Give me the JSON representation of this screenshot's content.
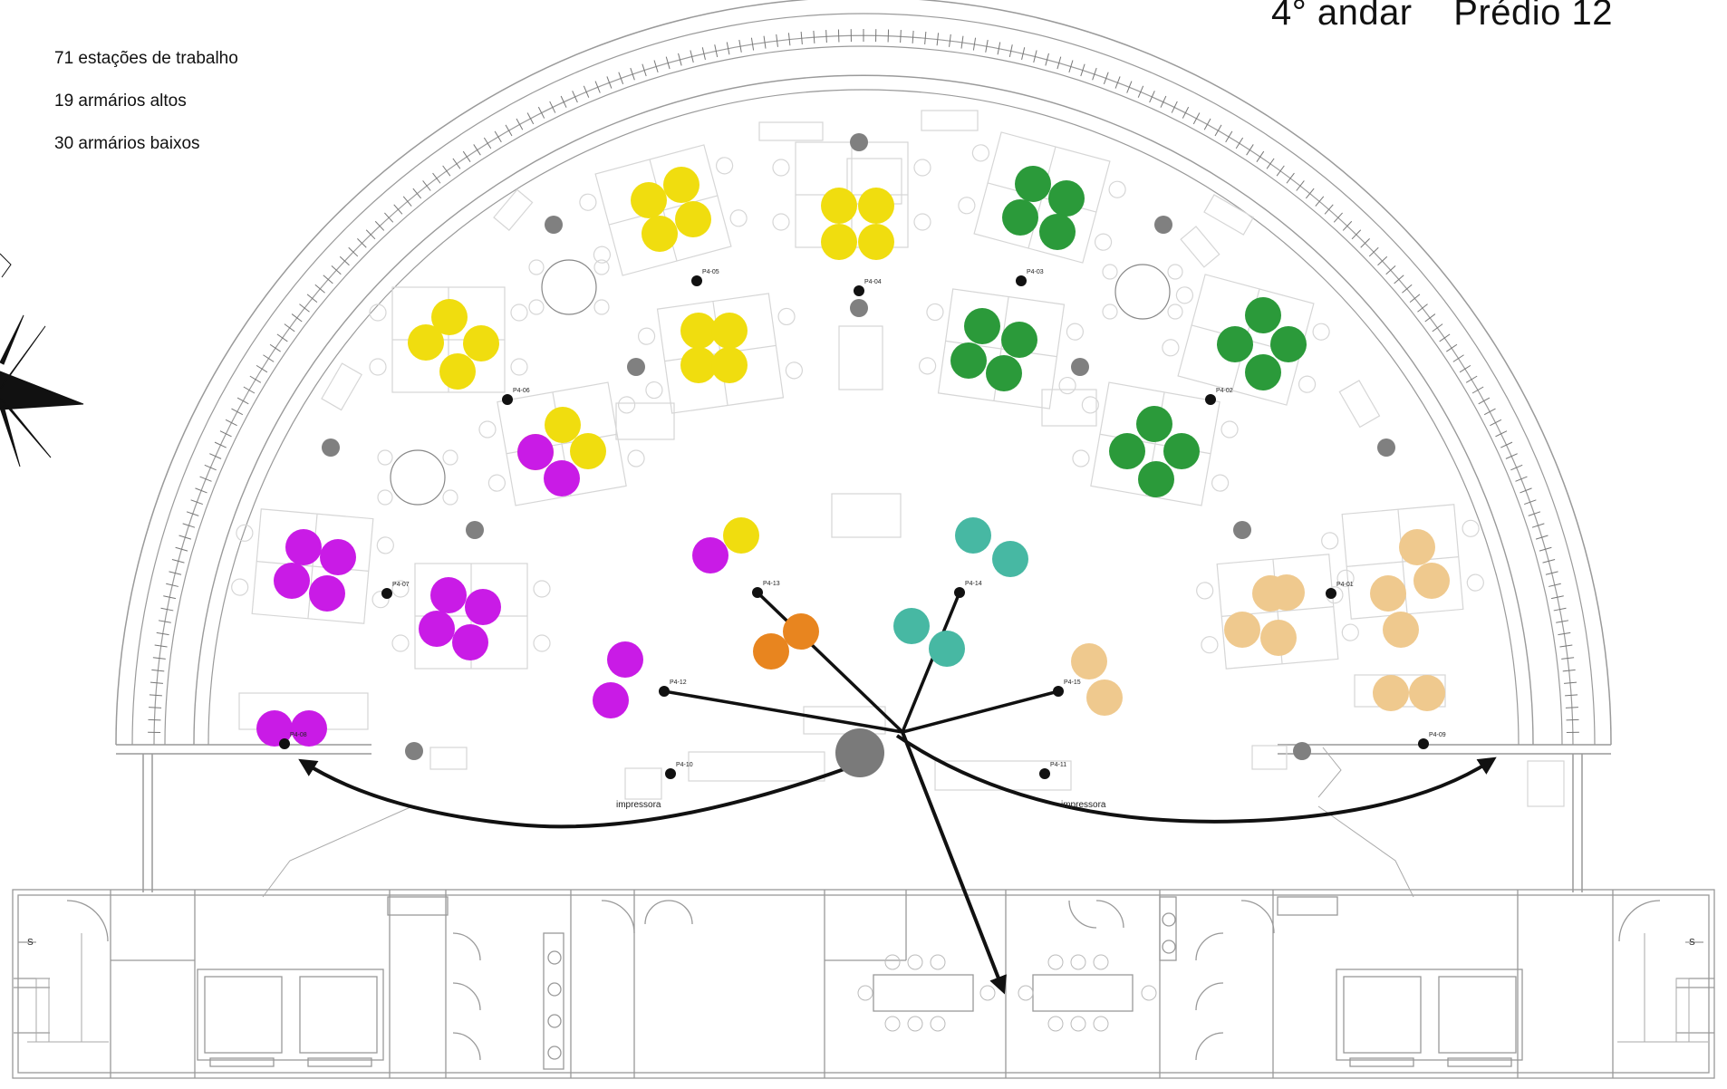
{
  "header": {
    "floor": "4° andar",
    "building": "Prédio 12"
  },
  "legend": {
    "items": [
      {
        "label": "71 estações de trabalho"
      },
      {
        "label": "19 armários altos"
      },
      {
        "label": "30 armários baixos"
      }
    ]
  },
  "team_colors": {
    "yellow": "#f0dd0f",
    "green": "#2b9a3a",
    "magenta": "#c91be6",
    "orange": "#e8851f",
    "teal": "#47b8a3",
    "peach": "#efc98e",
    "hub": "#7a7a7a",
    "column": "#808080"
  },
  "points": {
    "labels": [
      "P4-01",
      "P4-02",
      "P4-03",
      "P4-04",
      "P4-05",
      "P4-06",
      "P4-07",
      "P4-08",
      "P4-09",
      "P4-10",
      "P4-11",
      "P4-12",
      "P4-13",
      "P4-14",
      "P4-15"
    ]
  },
  "annotations": {
    "printer_left": "impressora",
    "printer_right": "impressora"
  },
  "stairs": {
    "left": "S",
    "right": "S"
  }
}
